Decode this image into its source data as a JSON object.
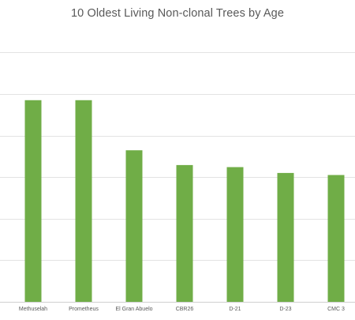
{
  "chart_data": {
    "type": "bar",
    "title": "10 Oldest Living Non-clonal Trees by Age",
    "categories": [
      "Methuselah",
      "Prometheus",
      "El Gran Abuelo",
      "CBR26",
      "D-21",
      "D-23",
      "CMC 3"
    ],
    "series": [
      {
        "values": [
          4850,
          4850,
          3645,
          3290,
          3240,
          3100,
          3050
        ],
        "color": "#70ad47"
      }
    ],
    "ylim": [
      0,
      6500
    ],
    "y_gridline_step": 1000,
    "grid": true,
    "legend": "none",
    "xlabel": "",
    "ylabel": "",
    "colors": {
      "bar": "#70ad47",
      "grid": "#e3e3e3",
      "axis": "#d0d0d0",
      "text": "#595959"
    }
  }
}
